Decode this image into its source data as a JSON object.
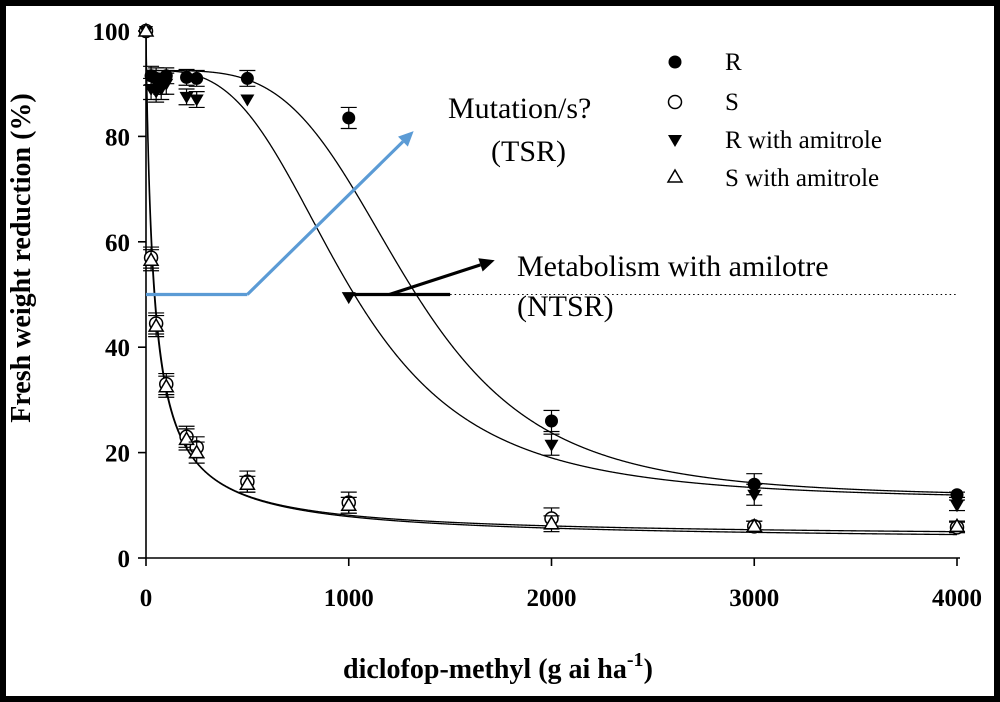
{
  "chart_data": {
    "type": "scatter",
    "title": "",
    "xlabel": "diclofop-methyl (g ai ha",
    "xlabel_superscript": "-1",
    "xlabel_close": ")",
    "ylabel": "Fresh weight reduction (%)",
    "xlim": [
      0,
      4000
    ],
    "ylim": [
      0,
      100
    ],
    "x_ticks": [
      0,
      1000,
      2000,
      3000,
      4000
    ],
    "x_tick_labels": [
      "0",
      "1000",
      "2000",
      "3000",
      "4000"
    ],
    "y_ticks": [
      0,
      20,
      40,
      60,
      80,
      100
    ],
    "y_tick_labels": [
      "0",
      "20",
      "40",
      "60",
      "80",
      "100"
    ],
    "legend_position": "top-right",
    "series": [
      {
        "name": "R",
        "marker": "filled-circle",
        "points": [
          [
            0,
            100
          ],
          [
            25,
            91.5
          ],
          [
            50,
            91
          ],
          [
            75,
            90
          ],
          [
            100,
            91.5
          ],
          [
            200,
            91.2
          ],
          [
            250,
            91
          ],
          [
            500,
            91
          ],
          [
            1000,
            83.5
          ],
          [
            2000,
            26
          ],
          [
            3000,
            14
          ],
          [
            4000,
            12
          ]
        ],
        "errors": [
          0,
          1.8,
          2,
          2,
          1.5,
          1.5,
          1.5,
          1.5,
          2,
          2,
          2,
          0.5
        ]
      },
      {
        "name": "S",
        "marker": "open-circle",
        "points": [
          [
            0,
            100
          ],
          [
            25,
            57
          ],
          [
            50,
            44.5
          ],
          [
            100,
            33
          ],
          [
            200,
            23
          ],
          [
            250,
            21
          ],
          [
            500,
            14.5
          ],
          [
            1000,
            10.5
          ],
          [
            2000,
            7.5
          ],
          [
            3000,
            6
          ],
          [
            4000,
            5.8
          ]
        ],
        "errors": [
          0,
          2,
          2,
          2,
          2,
          2,
          2,
          2,
          2,
          1,
          1
        ]
      },
      {
        "name": "R with amitrole",
        "marker": "filled-triangle-down",
        "points": [
          [
            0,
            100
          ],
          [
            25,
            89
          ],
          [
            50,
            88.5
          ],
          [
            75,
            89
          ],
          [
            100,
            90
          ],
          [
            200,
            87.5
          ],
          [
            250,
            87
          ],
          [
            500,
            87
          ],
          [
            1000,
            49.5
          ],
          [
            2000,
            21.5
          ],
          [
            3000,
            12
          ],
          [
            4000,
            10
          ]
        ],
        "errors": [
          0,
          2,
          2,
          2,
          2,
          1.5,
          1.5,
          0,
          0,
          2,
          2,
          1
        ]
      },
      {
        "name": "S with amitrole",
        "marker": "open-triangle-up",
        "points": [
          [
            0,
            100
          ],
          [
            25,
            56.5
          ],
          [
            50,
            44
          ],
          [
            100,
            32.5
          ],
          [
            200,
            22.5
          ],
          [
            250,
            20
          ],
          [
            500,
            14
          ],
          [
            1000,
            10
          ],
          [
            2000,
            6.5
          ],
          [
            3000,
            6
          ],
          [
            4000,
            6
          ]
        ],
        "errors": [
          0,
          2,
          2,
          2,
          2,
          2,
          1.5,
          1.5,
          1.5,
          1,
          1
        ]
      }
    ],
    "curves": [
      {
        "name": "R fit",
        "bottom": 11.5,
        "top": 92.5,
        "ed50": 1300,
        "slope": 4
      },
      {
        "name": "R with amitrole fit",
        "bottom": 11,
        "top": 92.5,
        "ed50": 1000,
        "slope": 3.2
      },
      {
        "name": "S fit",
        "bottom": 3.8,
        "top": 100,
        "ed50": 40,
        "slope": 0.95
      },
      {
        "name": "S with amitrole fit",
        "bottom": 3,
        "top": 100,
        "ed50": 38,
        "slope": 0.9
      }
    ],
    "reference_line": {
      "y": 50,
      "style": "dotted",
      "x_range": [
        1500,
        4000
      ]
    },
    "annotations": [
      {
        "line1": "Mutation/s?",
        "line2": "(TSR)"
      },
      {
        "line1": "Metabolism with amilotre",
        "line2": "(NTSR)"
      }
    ],
    "annotation_arrows": [
      {
        "color": "#5b9bd5",
        "segment": [
          [
            0,
            50
          ],
          [
            500,
            50
          ]
        ],
        "arrow_from": [
          500,
          50
        ],
        "arrow_to": [
          1320,
          81
        ]
      },
      {
        "color": "#000000",
        "segment": [
          [
            1000,
            50
          ],
          [
            1500,
            50
          ]
        ],
        "arrow_from": [
          1200,
          50
        ],
        "arrow_to": [
          1720,
          56.5
        ]
      }
    ]
  },
  "colors": {
    "blue_arrow": "#5b9bd5",
    "black": "#000000",
    "frame": "#000000"
  }
}
